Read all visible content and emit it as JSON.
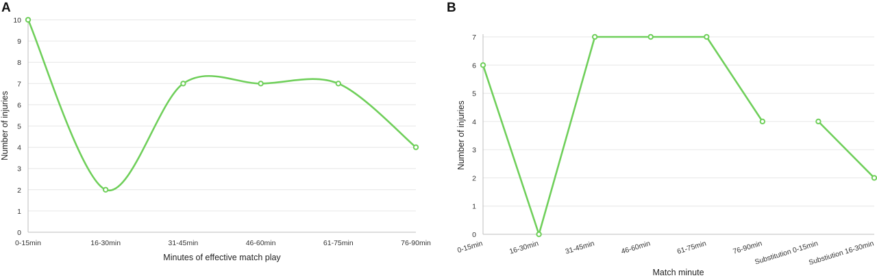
{
  "colors": {
    "series": "#6fcf5a"
  },
  "chart_data": [
    {
      "panel": "A",
      "type": "line",
      "smooth": true,
      "categories": [
        "0-15min",
        "16-30min",
        "31-45min",
        "46-60min",
        "61-75min",
        "76-90min"
      ],
      "values": [
        10,
        2,
        7,
        7,
        7,
        4
      ],
      "xlabel": "Minutes of effective match play",
      "ylabel": "Number of injuries",
      "ylim": [
        0,
        10
      ],
      "yticks": [
        0,
        1,
        2,
        3,
        4,
        5,
        6,
        7,
        8,
        9,
        10
      ],
      "grid": true,
      "legend": "none"
    },
    {
      "panel": "B",
      "type": "line",
      "smooth": false,
      "categories": [
        "0-15min",
        "16-30min",
        "31-45min",
        "46-60min",
        "61-75min",
        "76-90min",
        "Substitution 0-15min",
        "Substiution 16-30min"
      ],
      "values": [
        6,
        0,
        7,
        7,
        7,
        4,
        4,
        2
      ],
      "segments": [
        [
          0,
          5
        ],
        [
          6,
          7
        ]
      ],
      "xlabel": "Match minute",
      "ylabel": "Number of injuries",
      "ylim": [
        0,
        7
      ],
      "yticks": [
        0,
        1,
        2,
        3,
        4,
        5,
        6,
        7
      ],
      "grid": true,
      "legend": "none"
    }
  ]
}
